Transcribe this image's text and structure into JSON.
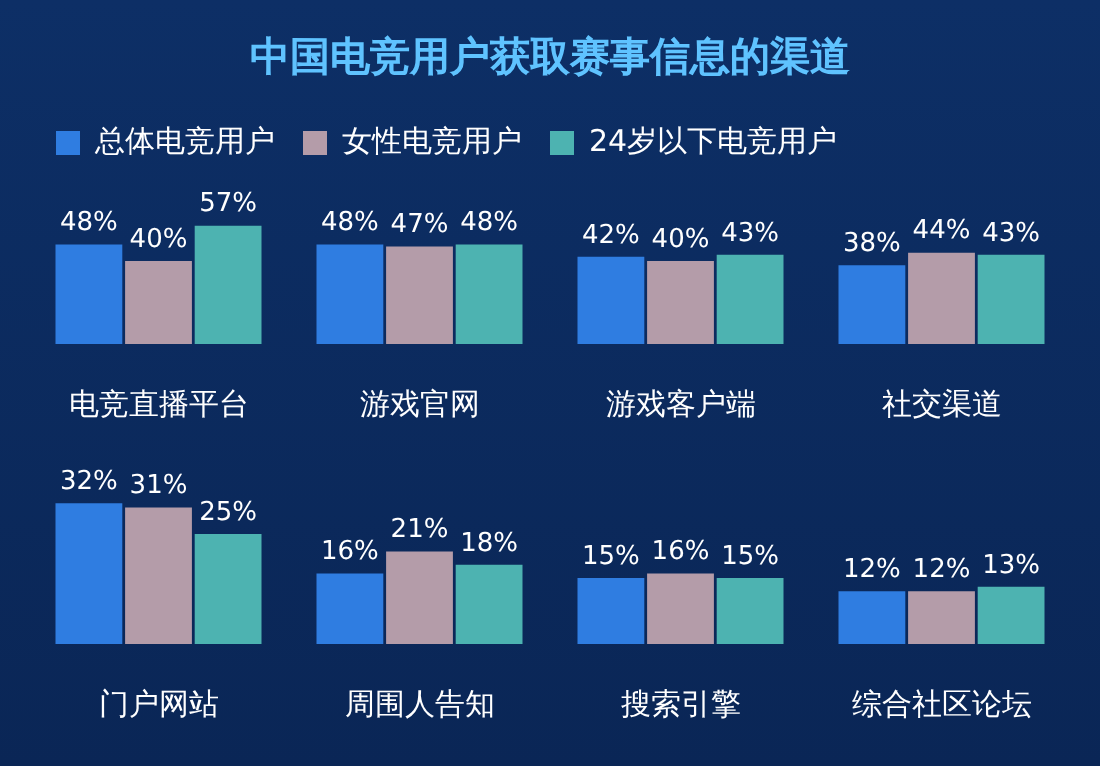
{
  "chart_data": [
    {
      "type": "bar",
      "title": "中国电竞用户获取赛事信息的渠道",
      "legend": "top",
      "grid": false,
      "data_labels": true,
      "categories": [
        "电竞直播平台",
        "游戏官网",
        "游戏客户端",
        "社交渠道"
      ],
      "series": [
        {
          "name": "总体电竞用户",
          "color": "#2f7de1",
          "values": [
            48,
            48,
            42,
            38
          ],
          "value_labels": [
            "48%",
            "48%",
            "42%",
            "38%"
          ]
        },
        {
          "name": "女性电竞用户",
          "color": "#b49ca9",
          "values": [
            40,
            47,
            40,
            44
          ],
          "value_labels": [
            "40%",
            "47%",
            "40%",
            "44%"
          ]
        },
        {
          "name": "24岁以下电竞用户",
          "color": "#4db3b1",
          "values": [
            57,
            48,
            43,
            43
          ],
          "value_labels": [
            "57%",
            "48%",
            "43%",
            "43%"
          ]
        }
      ]
    },
    {
      "type": "bar",
      "legend": false,
      "grid": false,
      "data_labels": true,
      "categories": [
        "门户网站",
        "周围人告知",
        "搜索引擎",
        "综合社区论坛"
      ],
      "series": [
        {
          "color": "#2f7de1",
          "values": [
            32,
            16,
            15,
            12
          ],
          "value_labels": [
            "32%",
            "16%",
            "15%",
            "12%"
          ]
        },
        {
          "color": "#b49ca9",
          "values": [
            31,
            21,
            16,
            12
          ],
          "value_labels": [
            "31%",
            "21%",
            "16%",
            "12%"
          ]
        },
        {
          "color": "#4db3b1",
          "values": [
            25,
            18,
            15,
            13
          ],
          "value_labels": [
            "25%",
            "18%",
            "15%",
            "13%"
          ]
        }
      ]
    }
  ]
}
